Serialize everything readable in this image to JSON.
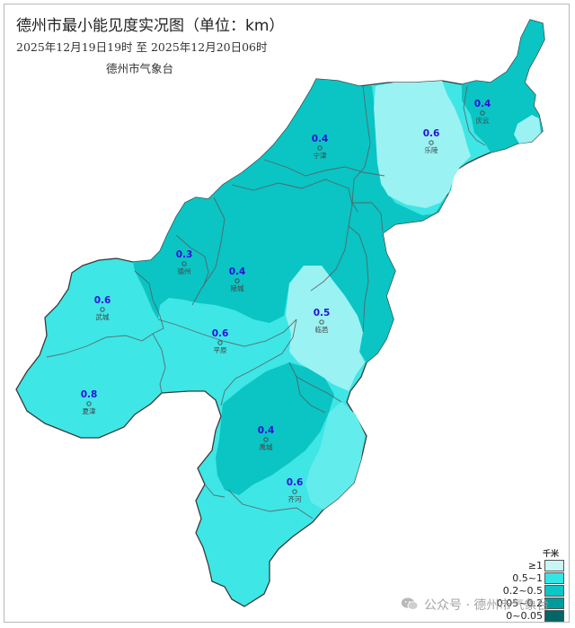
{
  "header": {
    "title": "德州市最小能见度实况图（单位：km）",
    "period": "2025年12月19日19时  至  2025年12月20日06时",
    "source": "德州市气象台"
  },
  "stations": [
    {
      "name": "庆云",
      "value": "0.4"
    },
    {
      "name": "乐陵",
      "value": "0.6"
    },
    {
      "name": "宁津",
      "value": "0.4"
    },
    {
      "name": "德州",
      "value": "0.3"
    },
    {
      "name": "陵城",
      "value": "0.4"
    },
    {
      "name": "武城",
      "value": "0.6"
    },
    {
      "name": "临邑",
      "value": "0.5"
    },
    {
      "name": "平原",
      "value": "0.6"
    },
    {
      "name": "夏津",
      "value": "0.8"
    },
    {
      "name": "禹城",
      "value": "0.4"
    },
    {
      "name": "齐河",
      "value": "0.6"
    }
  ],
  "legend": {
    "unit": "千米",
    "items": [
      {
        "label": "≥1",
        "color": "#c8f5f5"
      },
      {
        "label": "0.5~1",
        "color": "#33e6e6"
      },
      {
        "label": "0.2~0.5",
        "color": "#0cc5c5"
      },
      {
        "label": "0.05~0.2",
        "color": "#009a9a"
      },
      {
        "label": "0~0.05",
        "color": "#006666"
      }
    ]
  },
  "colors": {
    "light_cyan": "#3ee6e6",
    "cyan": "#3ae5e5",
    "dark_cyan": "#0bc4c4",
    "pale_cyan": "#9af2f2",
    "station_value": "#2a11d6"
  },
  "watermark": {
    "text": "公众号 · 德州市气象台"
  }
}
